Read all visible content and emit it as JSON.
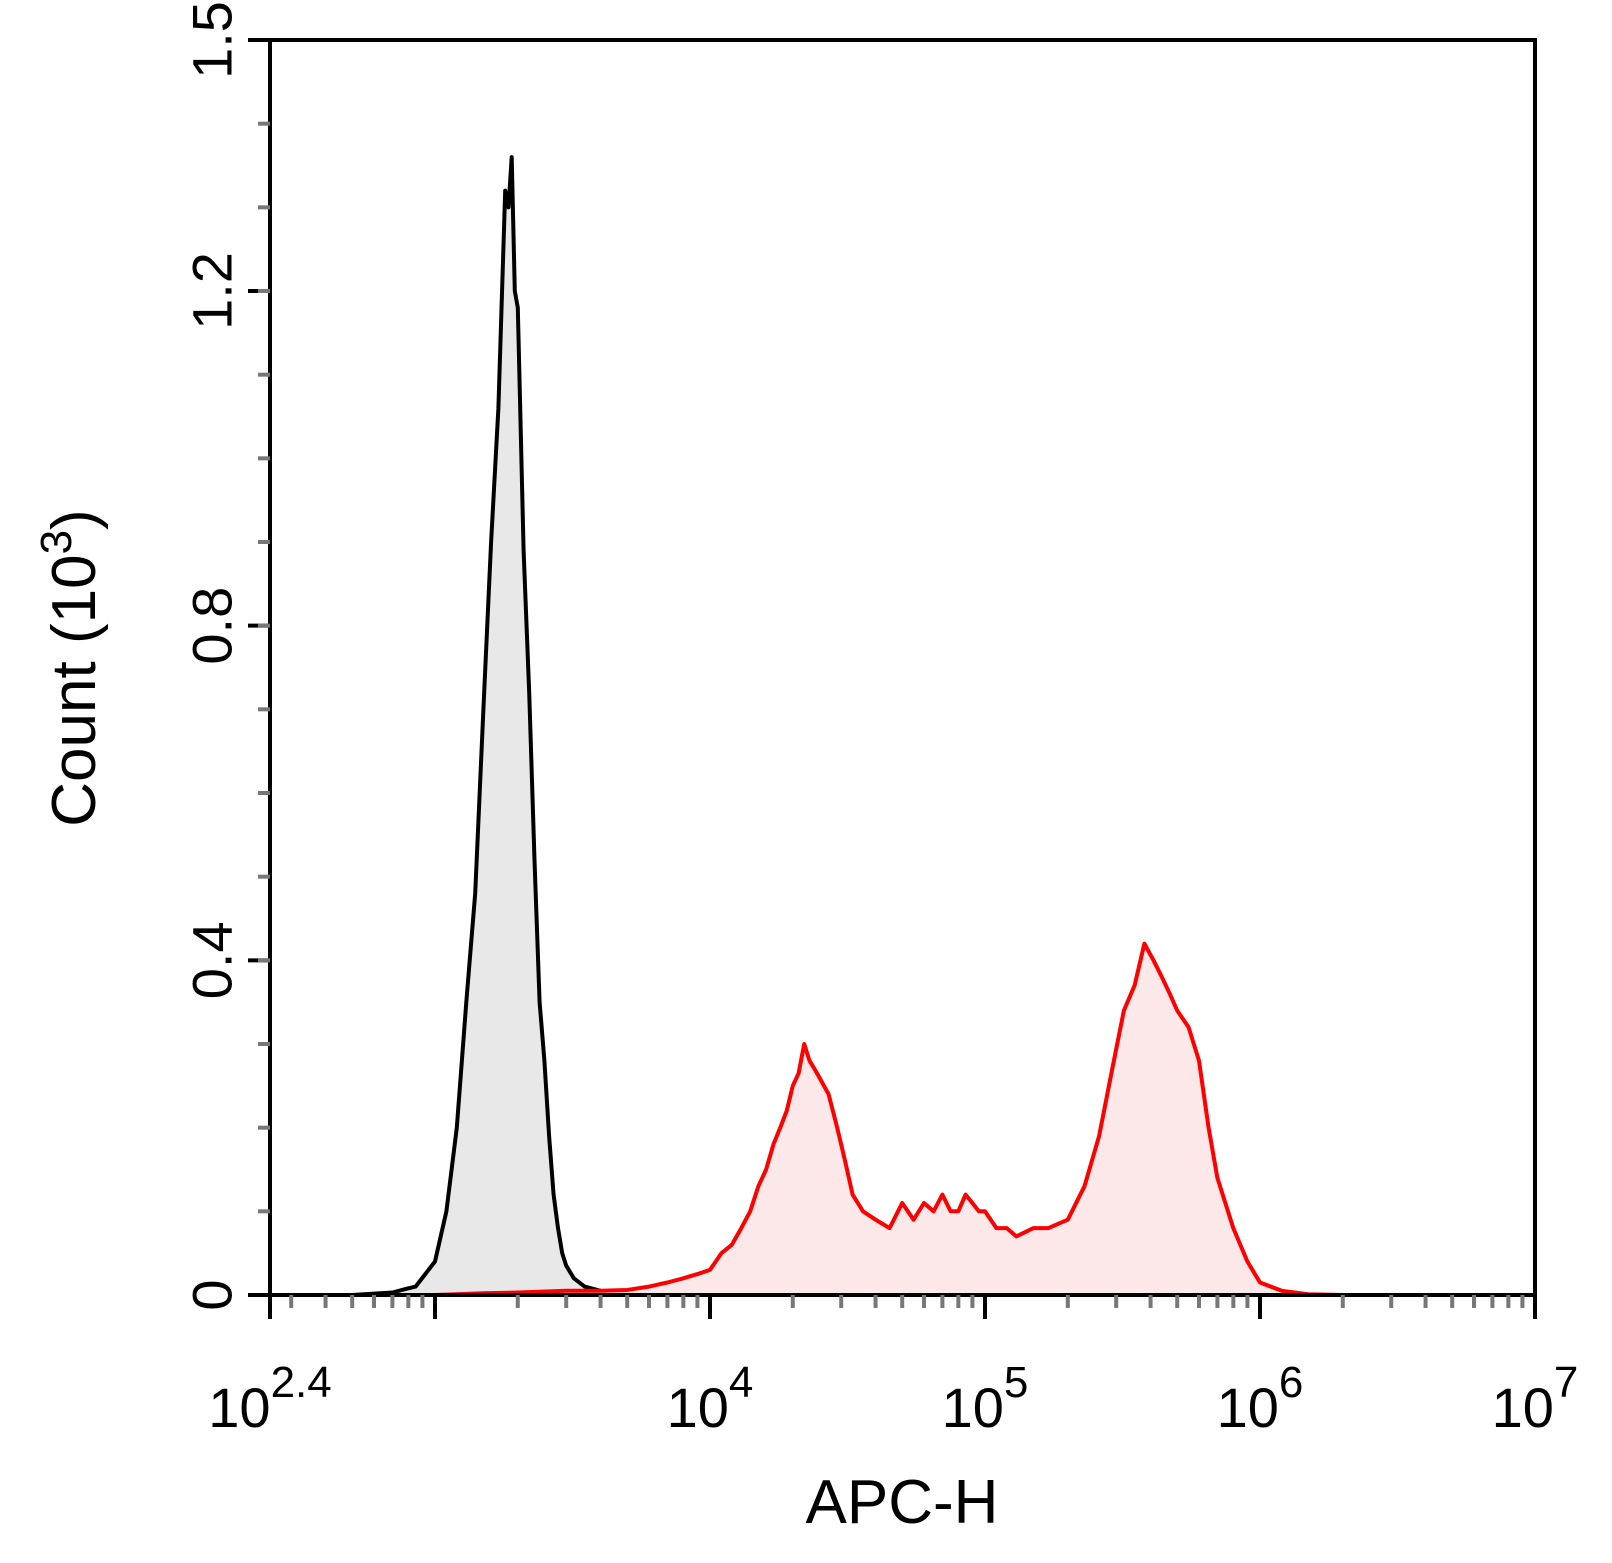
{
  "chart_data": {
    "type": "area",
    "title": "",
    "xlabel": "APC-H",
    "ylabel": "Count",
    "ylabel_unit_base": "10",
    "ylabel_unit_exp": "3",
    "x_scale": "log",
    "xlim": [
      251.19,
      10000000
    ],
    "ylim": [
      0,
      1.5
    ],
    "x_ticks": [
      {
        "base": "10",
        "exp": "2.4",
        "value": 251.19
      },
      {
        "base": "10",
        "exp": "4",
        "value": 10000
      },
      {
        "base": "10",
        "exp": "5",
        "value": 100000
      },
      {
        "base": "10",
        "exp": "6",
        "value": 1000000
      },
      {
        "base": "10",
        "exp": "7",
        "value": 10000000
      }
    ],
    "y_ticks": [
      {
        "label": "0",
        "value": 0
      },
      {
        "label": "0.4",
        "value": 0.4
      },
      {
        "label": "0.8",
        "value": 0.8
      },
      {
        "label": "1.2",
        "value": 1.2
      },
      {
        "label": "1.5",
        "value": 1.5
      }
    ],
    "grid": false,
    "legend": "none",
    "series": [
      {
        "color": "#000000",
        "fill": "#e8e8e8",
        "x": [
          251.2,
          500,
          700,
          800,
          850,
          1000,
          1100,
          1200,
          1300,
          1400,
          1500,
          1600,
          1700,
          1800,
          1850,
          1900,
          1950,
          2000,
          2100,
          2200,
          2300,
          2400,
          2500,
          2600,
          2700,
          2800,
          2900,
          3000,
          3200,
          3500,
          4000,
          4500,
          5000,
          6000,
          10000
        ],
        "y": [
          0,
          0,
          0.003,
          0.008,
          0.01,
          0.04,
          0.1,
          0.2,
          0.35,
          0.48,
          0.7,
          0.9,
          1.06,
          1.32,
          1.3,
          1.36,
          1.2,
          1.18,
          0.89,
          0.72,
          0.52,
          0.35,
          0.28,
          0.19,
          0.12,
          0.08,
          0.05,
          0.035,
          0.02,
          0.01,
          0.005,
          0.002,
          0.001,
          0,
          0
        ]
      },
      {
        "color": "#ff0000",
        "fill": "#fce8e8",
        "x": [
          251.2,
          1000,
          1500,
          2000,
          3000,
          4000,
          5000,
          6000,
          7000,
          8000,
          9000,
          10000,
          11000,
          12000,
          13000,
          14000,
          15000,
          16000,
          17000,
          18000,
          19000,
          20000,
          21000,
          22000,
          23000,
          24000,
          25000,
          27000,
          29000,
          31000,
          33000,
          36000,
          40000,
          45000,
          50000,
          55000,
          60000,
          65000,
          70000,
          75000,
          80000,
          85000,
          90000,
          95000,
          100000,
          110000,
          120000,
          130000,
          150000,
          170000,
          200000,
          230000,
          260000,
          290000,
          320000,
          350000,
          380000,
          410000,
          440000,
          470000,
          500000,
          550000,
          600000,
          650000,
          700000,
          800000,
          900000,
          1000000,
          1200000,
          1500000,
          2000000,
          10000000
        ],
        "y": [
          0,
          0,
          0.002,
          0.003,
          0.005,
          0.005,
          0.006,
          0.01,
          0.015,
          0.02,
          0.025,
          0.03,
          0.05,
          0.06,
          0.08,
          0.1,
          0.13,
          0.15,
          0.18,
          0.2,
          0.22,
          0.25,
          0.265,
          0.3,
          0.28,
          0.27,
          0.26,
          0.24,
          0.2,
          0.16,
          0.12,
          0.1,
          0.09,
          0.08,
          0.11,
          0.09,
          0.11,
          0.1,
          0.12,
          0.1,
          0.1,
          0.12,
          0.11,
          0.1,
          0.1,
          0.08,
          0.08,
          0.07,
          0.08,
          0.08,
          0.09,
          0.13,
          0.19,
          0.27,
          0.34,
          0.37,
          0.42,
          0.4,
          0.38,
          0.36,
          0.34,
          0.32,
          0.28,
          0.2,
          0.14,
          0.08,
          0.04,
          0.015,
          0.005,
          0.001,
          0,
          0
        ]
      }
    ]
  }
}
